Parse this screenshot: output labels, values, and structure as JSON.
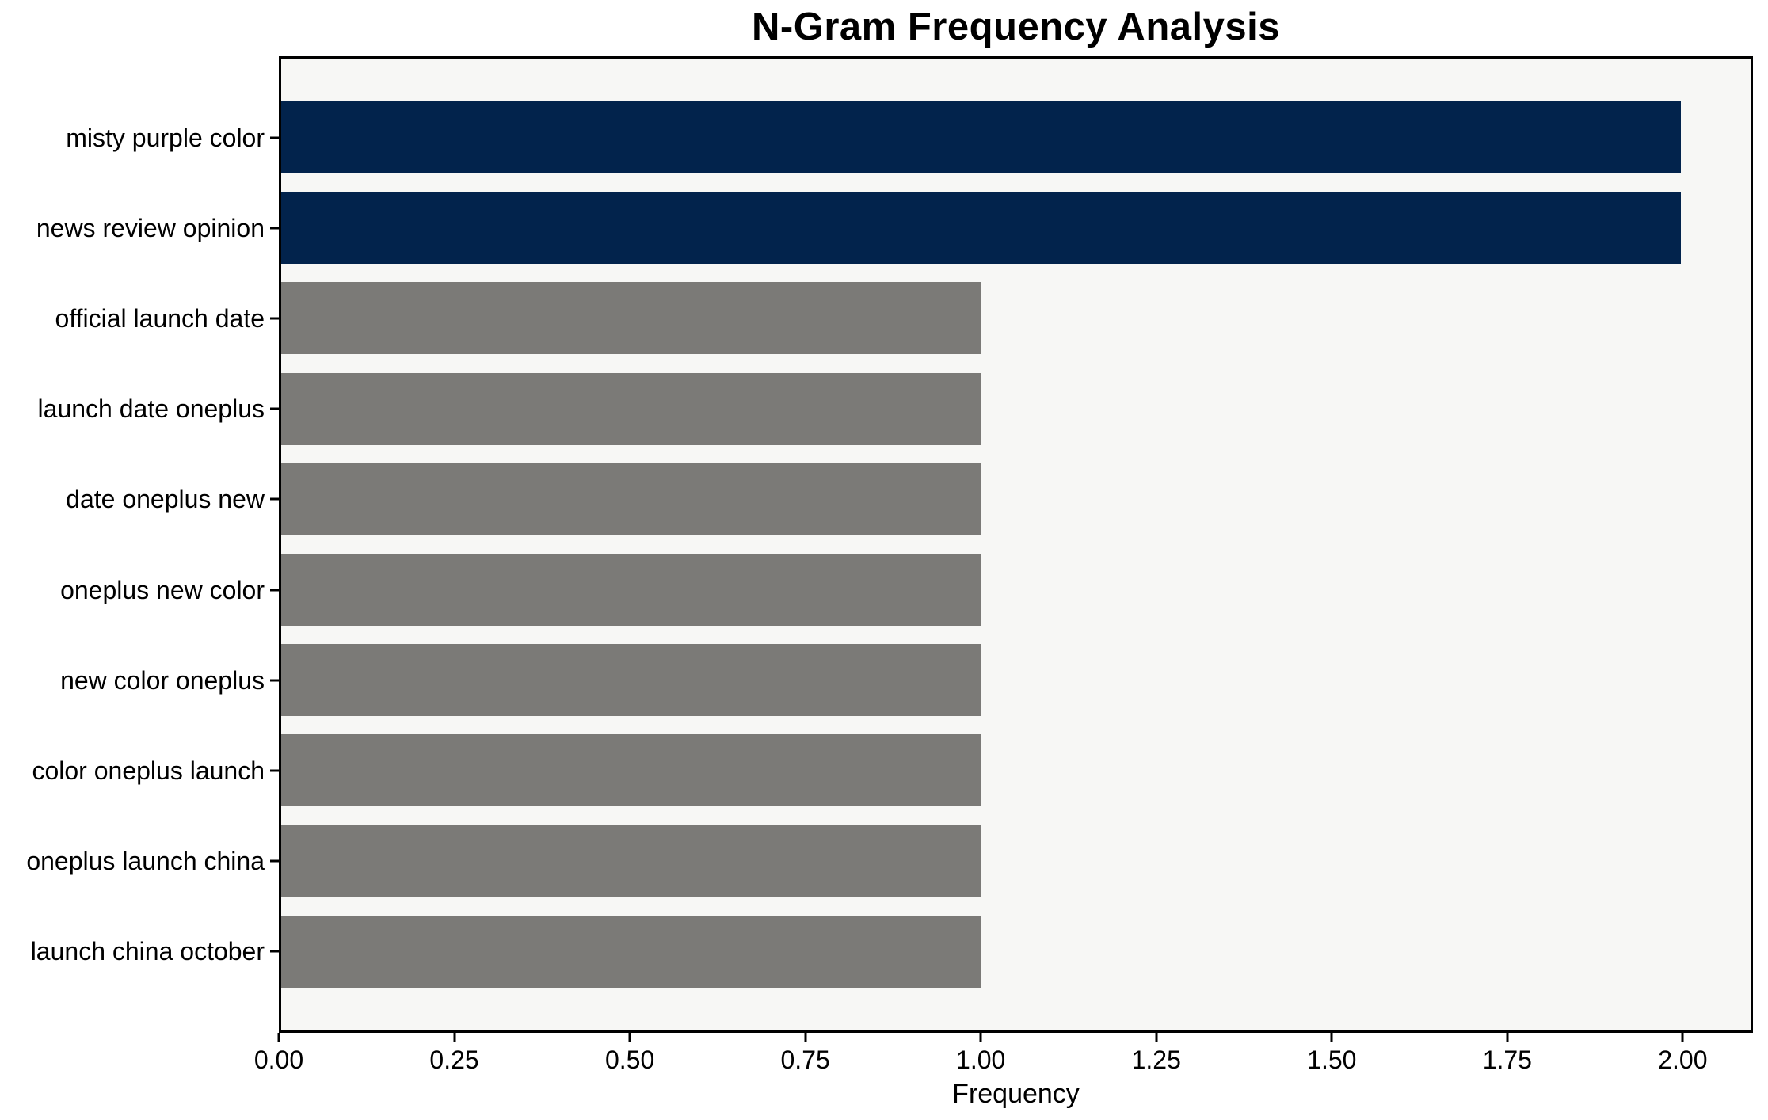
{
  "chart_data": {
    "type": "bar",
    "orientation": "horizontal",
    "title": "N-Gram Frequency Analysis",
    "xlabel": "Frequency",
    "ylabel": "",
    "categories": [
      "misty purple color",
      "news review opinion",
      "official launch date",
      "launch date oneplus",
      "date oneplus new",
      "oneplus new color",
      "new color oneplus",
      "color oneplus launch",
      "oneplus launch china",
      "launch china october"
    ],
    "values": [
      2,
      2,
      1,
      1,
      1,
      1,
      1,
      1,
      1,
      1
    ],
    "bar_colors": [
      "#02234C",
      "#02234C",
      "#7B7A77",
      "#7B7A77",
      "#7B7A77",
      "#7B7A77",
      "#7B7A77",
      "#7B7A77",
      "#7B7A77",
      "#7B7A77"
    ],
    "xlim": [
      0,
      2.1
    ],
    "xticks": [
      {
        "value": 0.0,
        "label": "0.00"
      },
      {
        "value": 0.25,
        "label": "0.25"
      },
      {
        "value": 0.5,
        "label": "0.50"
      },
      {
        "value": 0.75,
        "label": "0.75"
      },
      {
        "value": 1.0,
        "label": "1.00"
      },
      {
        "value": 1.25,
        "label": "1.25"
      },
      {
        "value": 1.5,
        "label": "1.50"
      },
      {
        "value": 1.75,
        "label": "1.75"
      },
      {
        "value": 2.0,
        "label": "2.00"
      }
    ],
    "grid": false,
    "legend": null,
    "colors": {
      "bar_highlight": "#02234C",
      "bar_default": "#7B7A77",
      "plot_background": "#F7F7F5",
      "figure_background": "#FFFFFF",
      "spine": "#000000",
      "text": "#000000"
    }
  }
}
